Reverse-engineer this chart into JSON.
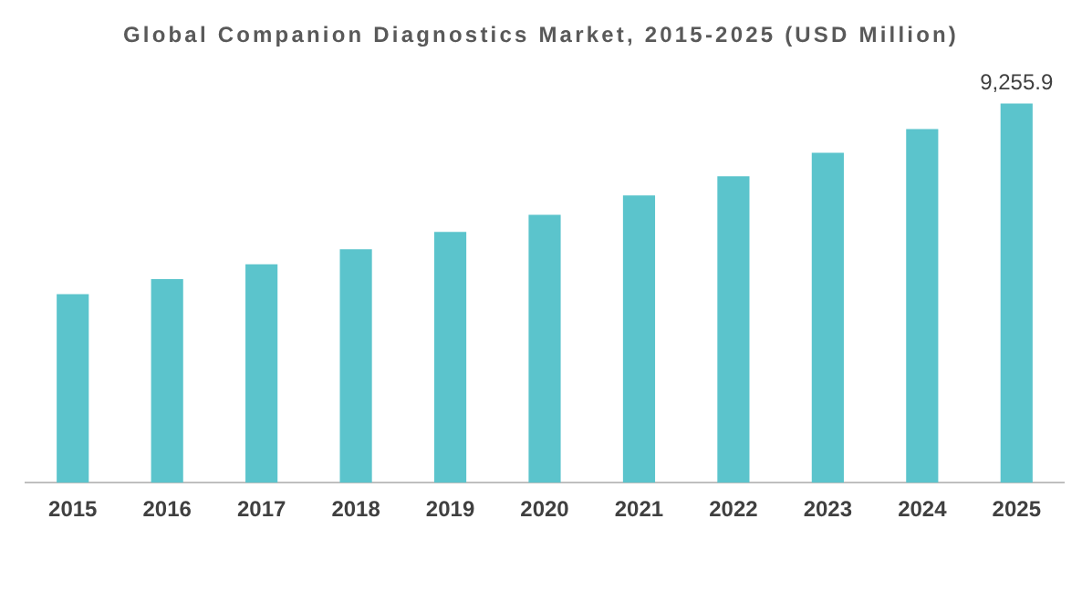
{
  "chart_data": {
    "type": "bar",
    "title": "Global Companion Diagnostics Market, 2015-2025 (USD Million)",
    "categories": [
      "2015",
      "2016",
      "2017",
      "2018",
      "2019",
      "2020",
      "2021",
      "2022",
      "2023",
      "2024",
      "2025"
    ],
    "values": [
      4600,
      4970,
      5330,
      5700,
      6120,
      6540,
      7010,
      7480,
      8050,
      8630,
      9255.9
    ],
    "value_labels": [
      null,
      null,
      null,
      null,
      null,
      null,
      null,
      null,
      null,
      null,
      "9,255.9"
    ],
    "color": "#5bc4cc",
    "grid": false,
    "legend": false,
    "tick_labels": "x"
  }
}
